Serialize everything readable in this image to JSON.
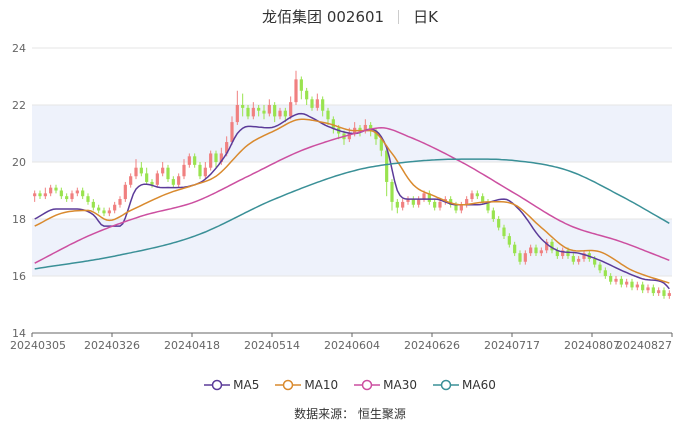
{
  "header": {
    "name": "龙佰集团",
    "code": "002601",
    "period": "日K"
  },
  "source": "数据来源： 恒生聚源",
  "colors": {
    "up": "#f08080",
    "down": "#99e34f",
    "band": "#eef2fb",
    "grid": "#e5e5e5",
    "axis": "#666666"
  },
  "chart_data": {
    "type": "candlestick",
    "y_axis": {
      "min": 14,
      "max": 24,
      "ticks": [
        14,
        16,
        18,
        20,
        22,
        24
      ]
    },
    "x_tick_labels": [
      "20240305",
      "20240326",
      "20240418",
      "20240514",
      "20240604",
      "20240626",
      "20240717",
      "20240807",
      "20240827"
    ],
    "x_tick_index": [
      0,
      15,
      30,
      45,
      60,
      75,
      90,
      105,
      119
    ],
    "legend_position": "bottom-center",
    "candles": [
      [
        18.8,
        18.9,
        18.6,
        19.0
      ],
      [
        18.9,
        18.8,
        18.7,
        19.0
      ],
      [
        18.8,
        18.9,
        18.7,
        19.1
      ],
      [
        18.9,
        19.1,
        18.8,
        19.2
      ],
      [
        19.1,
        19.0,
        18.9,
        19.2
      ],
      [
        19.0,
        18.8,
        18.7,
        19.1
      ],
      [
        18.8,
        18.7,
        18.6,
        18.9
      ],
      [
        18.7,
        18.9,
        18.6,
        19.0
      ],
      [
        18.9,
        19.0,
        18.8,
        19.1
      ],
      [
        19.0,
        18.8,
        18.7,
        19.1
      ],
      [
        18.8,
        18.6,
        18.5,
        18.9
      ],
      [
        18.6,
        18.4,
        18.3,
        18.7
      ],
      [
        18.4,
        18.3,
        18.2,
        18.5
      ],
      [
        18.3,
        18.2,
        18.1,
        18.4
      ],
      [
        18.2,
        18.3,
        18.1,
        18.4
      ],
      [
        18.3,
        18.5,
        18.2,
        18.6
      ],
      [
        18.5,
        18.7,
        18.4,
        18.8
      ],
      [
        18.7,
        19.2,
        18.6,
        19.3
      ],
      [
        19.2,
        19.5,
        19.1,
        19.6
      ],
      [
        19.5,
        19.8,
        19.4,
        20.1
      ],
      [
        19.8,
        19.6,
        19.5,
        20.0
      ],
      [
        19.6,
        19.3,
        19.2,
        19.8
      ],
      [
        19.3,
        19.2,
        19.1,
        19.4
      ],
      [
        19.2,
        19.6,
        19.1,
        19.7
      ],
      [
        19.6,
        19.8,
        19.5,
        20.0
      ],
      [
        19.8,
        19.4,
        19.3,
        19.9
      ],
      [
        19.4,
        19.2,
        19.1,
        19.5
      ],
      [
        19.2,
        19.5,
        19.1,
        19.6
      ],
      [
        19.5,
        19.9,
        19.4,
        20.1
      ],
      [
        19.9,
        20.2,
        19.8,
        20.3
      ],
      [
        20.2,
        19.9,
        19.8,
        20.3
      ],
      [
        19.9,
        19.5,
        19.4,
        20.0
      ],
      [
        19.5,
        19.8,
        19.4,
        20.0
      ],
      [
        19.8,
        20.3,
        19.7,
        20.4
      ],
      [
        20.3,
        20.0,
        19.8,
        20.4
      ],
      [
        20.0,
        20.3,
        19.9,
        20.5
      ],
      [
        20.3,
        20.7,
        20.2,
        20.9
      ],
      [
        20.7,
        21.4,
        20.6,
        21.6
      ],
      [
        21.4,
        22.0,
        21.3,
        22.5
      ],
      [
        22.0,
        21.9,
        21.6,
        22.4
      ],
      [
        21.9,
        21.6,
        21.5,
        22.0
      ],
      [
        21.6,
        21.9,
        21.5,
        22.1
      ],
      [
        21.9,
        21.8,
        21.6,
        22.0
      ],
      [
        21.8,
        21.7,
        21.5,
        22.0
      ],
      [
        21.7,
        22.0,
        21.6,
        22.2
      ],
      [
        22.0,
        21.6,
        21.4,
        22.1
      ],
      [
        21.6,
        21.8,
        21.5,
        21.9
      ],
      [
        21.8,
        21.6,
        21.4,
        21.9
      ],
      [
        21.6,
        22.1,
        21.5,
        22.3
      ],
      [
        22.1,
        22.9,
        22.0,
        23.2
      ],
      [
        22.9,
        22.5,
        22.2,
        23.0
      ],
      [
        22.5,
        22.2,
        22.0,
        22.6
      ],
      [
        22.2,
        21.9,
        21.8,
        22.3
      ],
      [
        21.9,
        22.2,
        21.8,
        22.4
      ],
      [
        22.2,
        21.8,
        21.6,
        22.3
      ],
      [
        21.8,
        21.5,
        21.3,
        21.9
      ],
      [
        21.5,
        21.2,
        21.0,
        21.6
      ],
      [
        21.2,
        21.0,
        20.8,
        21.3
      ],
      [
        21.0,
        20.8,
        20.6,
        21.1
      ],
      [
        20.8,
        21.0,
        20.7,
        21.2
      ],
      [
        21.0,
        21.2,
        20.9,
        21.4
      ],
      [
        21.2,
        21.1,
        20.9,
        21.3
      ],
      [
        21.1,
        21.3,
        21.0,
        21.5
      ],
      [
        21.3,
        21.1,
        20.9,
        21.4
      ],
      [
        21.1,
        20.8,
        20.6,
        21.2
      ],
      [
        20.8,
        20.4,
        20.2,
        20.9
      ],
      [
        20.4,
        19.3,
        18.8,
        20.5
      ],
      [
        19.3,
        18.6,
        18.3,
        19.4
      ],
      [
        18.6,
        18.4,
        18.2,
        18.7
      ],
      [
        18.4,
        18.6,
        18.3,
        18.7
      ],
      [
        18.6,
        18.7,
        18.5,
        18.8
      ],
      [
        18.7,
        18.5,
        18.4,
        18.8
      ],
      [
        18.5,
        18.7,
        18.4,
        18.8
      ],
      [
        18.7,
        18.9,
        18.6,
        19.0
      ],
      [
        18.9,
        18.6,
        18.5,
        19.0
      ],
      [
        18.6,
        18.4,
        18.3,
        18.7
      ],
      [
        18.4,
        18.6,
        18.3,
        18.7
      ],
      [
        18.6,
        18.7,
        18.5,
        18.8
      ],
      [
        18.7,
        18.5,
        18.4,
        18.8
      ],
      [
        18.5,
        18.3,
        18.2,
        18.6
      ],
      [
        18.3,
        18.5,
        18.2,
        18.6
      ],
      [
        18.5,
        18.7,
        18.4,
        18.8
      ],
      [
        18.7,
        18.9,
        18.6,
        19.0
      ],
      [
        18.9,
        18.8,
        18.7,
        19.0
      ],
      [
        18.8,
        18.6,
        18.5,
        18.9
      ],
      [
        18.6,
        18.3,
        18.2,
        18.7
      ],
      [
        18.3,
        18.0,
        17.9,
        18.4
      ],
      [
        18.0,
        17.7,
        17.6,
        18.1
      ],
      [
        17.7,
        17.4,
        17.3,
        17.8
      ],
      [
        17.4,
        17.1,
        17.0,
        17.5
      ],
      [
        17.1,
        16.8,
        16.7,
        17.2
      ],
      [
        16.8,
        16.5,
        16.4,
        16.9
      ],
      [
        16.5,
        16.8,
        16.4,
        16.9
      ],
      [
        16.8,
        17.0,
        16.7,
        17.1
      ],
      [
        17.0,
        16.8,
        16.7,
        17.1
      ],
      [
        16.8,
        16.9,
        16.7,
        17.0
      ],
      [
        16.9,
        17.2,
        16.8,
        17.3
      ],
      [
        17.2,
        16.9,
        16.8,
        17.3
      ],
      [
        16.9,
        16.7,
        16.6,
        17.0
      ],
      [
        16.7,
        16.9,
        16.6,
        17.0
      ],
      [
        16.9,
        16.7,
        16.6,
        17.0
      ],
      [
        16.7,
        16.5,
        16.4,
        16.8
      ],
      [
        16.5,
        16.6,
        16.4,
        16.7
      ],
      [
        16.6,
        16.8,
        16.5,
        16.9
      ],
      [
        16.8,
        16.6,
        16.5,
        16.9
      ],
      [
        16.6,
        16.4,
        16.3,
        16.7
      ],
      [
        16.4,
        16.2,
        16.1,
        16.5
      ],
      [
        16.2,
        16.0,
        15.9,
        16.3
      ],
      [
        16.0,
        15.8,
        15.7,
        16.1
      ],
      [
        15.8,
        15.9,
        15.7,
        16.0
      ],
      [
        15.9,
        15.7,
        15.6,
        16.0
      ],
      [
        15.7,
        15.8,
        15.6,
        15.9
      ],
      [
        15.8,
        15.6,
        15.5,
        15.9
      ],
      [
        15.6,
        15.7,
        15.5,
        15.8
      ],
      [
        15.7,
        15.5,
        15.4,
        15.8
      ],
      [
        15.5,
        15.6,
        15.4,
        15.7
      ],
      [
        15.6,
        15.4,
        15.3,
        15.7
      ],
      [
        15.4,
        15.5,
        15.3,
        15.6
      ],
      [
        15.5,
        15.3,
        15.2,
        15.6
      ],
      [
        15.3,
        15.4,
        15.2,
        15.5
      ]
    ],
    "series": [
      {
        "name": "MA5",
        "color": "#5b3b99",
        "knots": [
          [
            0,
            18.0
          ],
          [
            4,
            18.35
          ],
          [
            8,
            18.35
          ],
          [
            11,
            18.15
          ],
          [
            13,
            17.75
          ],
          [
            16,
            17.75
          ],
          [
            19,
            19.05
          ],
          [
            24,
            19.1
          ],
          [
            29,
            19.15
          ],
          [
            32,
            19.4
          ],
          [
            36,
            20.3
          ],
          [
            38,
            21.0
          ],
          [
            40,
            21.25
          ],
          [
            44,
            21.2
          ],
          [
            50,
            21.7
          ],
          [
            52,
            21.55
          ],
          [
            55,
            21.25
          ],
          [
            60,
            21.0
          ],
          [
            63,
            21.15
          ],
          [
            66,
            20.5
          ],
          [
            68,
            19.0
          ],
          [
            70,
            18.7
          ],
          [
            75,
            18.7
          ],
          [
            79,
            18.5
          ],
          [
            83,
            18.5
          ],
          [
            88,
            18.7
          ],
          [
            91,
            18.3
          ],
          [
            95,
            17.3
          ],
          [
            98,
            16.9
          ],
          [
            102,
            16.8
          ],
          [
            106,
            16.55
          ],
          [
            110,
            16.2
          ],
          [
            114,
            15.9
          ],
          [
            118,
            15.75
          ],
          [
            119,
            15.55
          ]
        ]
      },
      {
        "name": "MA10",
        "color": "#d98a2e",
        "knots": [
          [
            0,
            17.75
          ],
          [
            5,
            18.2
          ],
          [
            10,
            18.3
          ],
          [
            14,
            17.95
          ],
          [
            18,
            18.3
          ],
          [
            25,
            18.9
          ],
          [
            30,
            19.2
          ],
          [
            34,
            19.5
          ],
          [
            40,
            20.6
          ],
          [
            45,
            21.1
          ],
          [
            50,
            21.5
          ],
          [
            55,
            21.35
          ],
          [
            60,
            21.1
          ],
          [
            63,
            21.1
          ],
          [
            67,
            20.3
          ],
          [
            71,
            19.2
          ],
          [
            75,
            18.8
          ],
          [
            80,
            18.5
          ],
          [
            85,
            18.6
          ],
          [
            90,
            18.5
          ],
          [
            95,
            17.7
          ],
          [
            100,
            16.95
          ],
          [
            106,
            16.85
          ],
          [
            112,
            16.2
          ],
          [
            119,
            15.75
          ]
        ]
      },
      {
        "name": "MA30",
        "color": "#cc4fa0",
        "knots": [
          [
            0,
            16.45
          ],
          [
            10,
            17.4
          ],
          [
            20,
            18.1
          ],
          [
            30,
            18.6
          ],
          [
            40,
            19.5
          ],
          [
            50,
            20.4
          ],
          [
            60,
            21.0
          ],
          [
            65,
            21.2
          ],
          [
            70,
            20.9
          ],
          [
            80,
            20.0
          ],
          [
            90,
            18.9
          ],
          [
            100,
            17.8
          ],
          [
            110,
            17.2
          ],
          [
            119,
            16.55
          ]
        ]
      },
      {
        "name": "MA60",
        "color": "#3a9097",
        "knots": [
          [
            0,
            16.25
          ],
          [
            15,
            16.7
          ],
          [
            30,
            17.4
          ],
          [
            45,
            18.7
          ],
          [
            60,
            19.7
          ],
          [
            70,
            20.0
          ],
          [
            80,
            20.1
          ],
          [
            90,
            20.05
          ],
          [
            100,
            19.7
          ],
          [
            110,
            18.8
          ],
          [
            119,
            17.85
          ]
        ]
      }
    ]
  }
}
